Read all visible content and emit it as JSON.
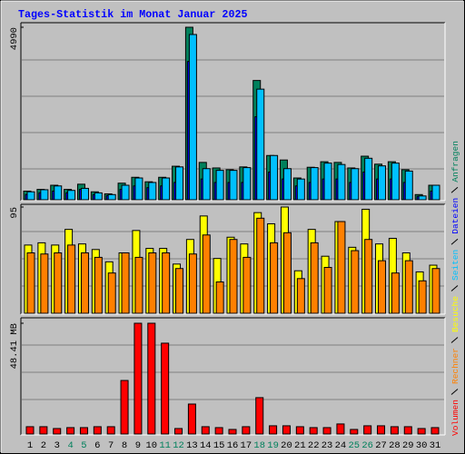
{
  "chart_data": [
    {
      "type": "bar",
      "title": "Tages-Statistik im Monat Januar 2025",
      "categories": [
        "1",
        "2",
        "3",
        "4",
        "5",
        "6",
        "7",
        "8",
        "9",
        "10",
        "11",
        "12",
        "13",
        "14",
        "15",
        "16",
        "17",
        "18",
        "19",
        "20",
        "21",
        "22",
        "23",
        "24",
        "25",
        "26",
        "27",
        "28",
        "29",
        "30",
        "31"
      ],
      "category_colors": [
        "#000000",
        "#000000",
        "#000000",
        "#00805c",
        "#00805c",
        "#000000",
        "#000000",
        "#000000",
        "#000000",
        "#000000",
        "#00805c",
        "#00805c",
        "#000000",
        "#000000",
        "#000000",
        "#000000",
        "#000000",
        "#00805c",
        "#00805c",
        "#000000",
        "#000000",
        "#000000",
        "#000000",
        "#000000",
        "#00805c",
        "#00805c",
        "#000000",
        "#000000",
        "#000000",
        "#000000",
        "#000000"
      ],
      "ylim": [
        0,
        4990
      ],
      "yticks": [
        4990
      ],
      "series": [
        {
          "name": "Anfragen",
          "color": "#00805c",
          "values": [
            250,
            300,
            420,
            300,
            450,
            230,
            170,
            480,
            650,
            520,
            650,
            970,
            4990,
            1080,
            920,
            870,
            950,
            3450,
            1280,
            1150,
            630,
            940,
            1100,
            1080,
            920,
            1260,
            1030,
            1100,
            870,
            150,
            420
          ]
        },
        {
          "name": "Dateien",
          "color": "#0000ff",
          "values": [
            150,
            200,
            250,
            200,
            300,
            150,
            120,
            300,
            400,
            350,
            400,
            500,
            4000,
            600,
            500,
            500,
            500,
            2400,
            800,
            600,
            400,
            500,
            600,
            600,
            500,
            800,
            600,
            600,
            500,
            100,
            250
          ]
        },
        {
          "name": "Seiten",
          "color": "#00c0ff",
          "values": [
            230,
            290,
            400,
            270,
            330,
            200,
            150,
            420,
            630,
            500,
            630,
            950,
            4780,
            900,
            850,
            850,
            930,
            3200,
            1280,
            900,
            600,
            930,
            1060,
            1020,
            900,
            1200,
            980,
            1060,
            830,
            110,
            420
          ]
        }
      ]
    },
    {
      "type": "bar",
      "ylim": [
        0,
        95
      ],
      "yticks": [
        95
      ],
      "series": [
        {
          "name": "Besuche",
          "color": "#ffff00",
          "values": [
            61,
            63,
            61,
            75,
            62,
            57,
            46,
            54,
            74,
            58,
            58,
            44,
            66,
            87,
            49,
            68,
            62,
            90,
            80,
            95,
            38,
            75,
            51,
            82,
            59,
            93,
            62,
            67,
            54,
            37,
            43
          ]
        },
        {
          "name": "Rechner",
          "color": "#ff8000",
          "values": [
            54,
            53,
            54,
            61,
            54,
            50,
            36,
            54,
            50,
            54,
            54,
            40,
            53,
            70,
            28,
            66,
            50,
            85,
            63,
            72,
            31,
            63,
            41,
            82,
            56,
            66,
            47,
            36,
            47,
            29,
            40
          ]
        }
      ]
    },
    {
      "type": "bar",
      "ylim": [
        0,
        48.41
      ],
      "yticks": [
        {
          "value": 48.41,
          "label": "48.41 MB"
        }
      ],
      "series": [
        {
          "name": "Volumen",
          "color": "#ff0000",
          "values": [
            3.2,
            3.2,
            2.4,
            2.8,
            2.8,
            3.2,
            3.2,
            23.4,
            48.41,
            48.41,
            39.7,
            2.4,
            13.1,
            3.2,
            2.8,
            2.0,
            3.2,
            15.9,
            3.6,
            3.6,
            3.2,
            2.8,
            2.8,
            4.4,
            2.0,
            3.6,
            3.6,
            3.2,
            3.2,
            2.4,
            2.8
          ]
        }
      ]
    }
  ]
}
